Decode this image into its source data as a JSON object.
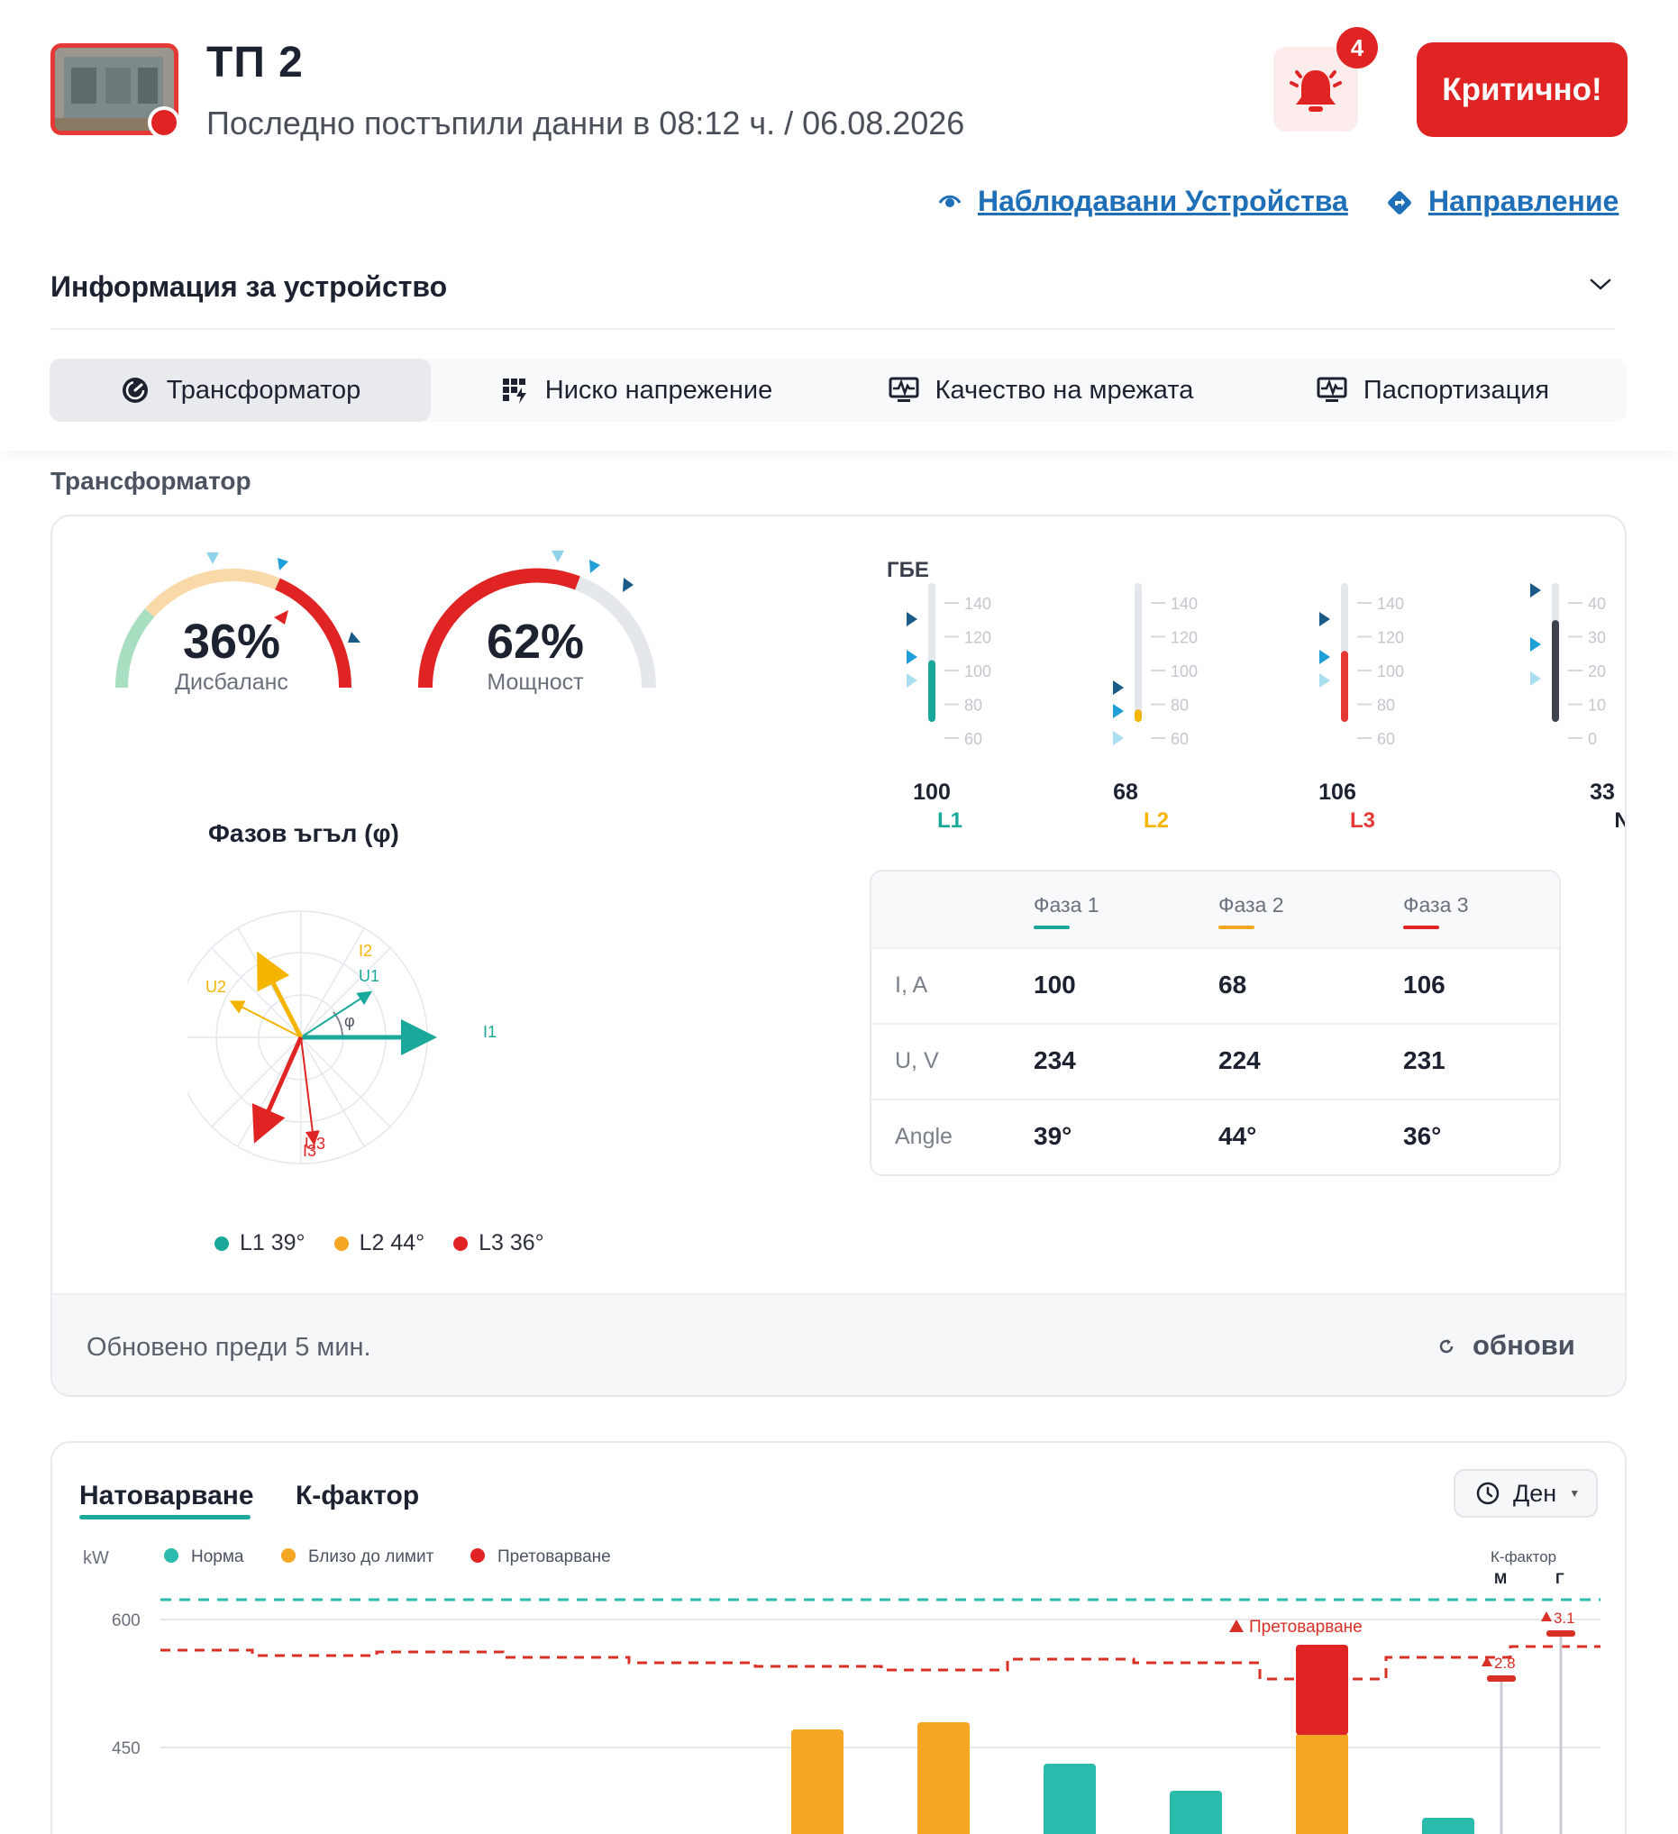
{
  "header": {
    "title": "ТП 2",
    "subtitle": "Последно постъпили данни в 08:12 ч. / 06.08.2026",
    "alerts_count": "4",
    "critical_label": "Критично!",
    "monitored_devices_link": "Наблюдавани Устройства",
    "direction_link": "Направление",
    "colors": {
      "critical": "#e02424",
      "link": "#1e6fb8"
    }
  },
  "device_info": {
    "title": "Информация за устройство"
  },
  "tabs": [
    {
      "label": "Трансформатор",
      "icon": "gauge-icon",
      "active": true
    },
    {
      "label": "Ниско напрежение",
      "icon": "grid-bolt-icon",
      "active": false
    },
    {
      "label": "Качество на мрежата",
      "icon": "monitor-wave-icon",
      "active": false
    },
    {
      "label": "Паспортизация",
      "icon": "monitor-wave-icon",
      "active": false
    }
  ],
  "transformer": {
    "section_title": "Трансформатор",
    "gauges": [
      {
        "value": "36%",
        "label": "Дисбаланс",
        "fraction": 0.36
      },
      {
        "value": "62%",
        "label": "Мощност",
        "fraction": 0.62
      }
    ],
    "gbe": {
      "label": "ГБЕ",
      "meters": [
        {
          "name": "L1",
          "value": "100",
          "level": 100,
          "color": "#1aa89a",
          "ticks": [
            "140",
            "120",
            "100",
            "80",
            "60"
          ]
        },
        {
          "name": "L2",
          "value": "68",
          "level": 68,
          "color": "#f5b400",
          "ticks": [
            "140",
            "120",
            "100",
            "80",
            "60"
          ]
        },
        {
          "name": "L3",
          "value": "106",
          "level": 106,
          "color": "#e53935",
          "ticks": [
            "140",
            "120",
            "100",
            "80",
            "60"
          ]
        },
        {
          "name": "N",
          "value": "33",
          "level": 33,
          "color": "#3d434d",
          "ticks": [
            "40",
            "30",
            "20",
            "10",
            "0"
          ]
        }
      ]
    },
    "phase_angle": {
      "title": "Фазов ъгъл (φ)",
      "phi": "φ",
      "vectors": {
        "I1": "I1",
        "I2": "I2",
        "I3": "I3",
        "U1": "U1",
        "U2": "U2",
        "U3": "U3"
      },
      "legend": [
        {
          "label": "L1 39°",
          "color": "#1aa89a"
        },
        {
          "label": "L2 44°",
          "color": "#f5a623"
        },
        {
          "label": "L3 36°",
          "color": "#e02424"
        }
      ]
    },
    "phase_table": {
      "headers": [
        "Фаза 1",
        "Фаза 2",
        "Фаза 3"
      ],
      "header_colors": [
        "#1aa89a",
        "#f5a623",
        "#e02424"
      ],
      "rows": [
        {
          "label": "I, A",
          "values": [
            "100",
            "68",
            "106"
          ]
        },
        {
          "label": "U, V",
          "values": [
            "234",
            "224",
            "231"
          ]
        },
        {
          "label": "Angle",
          "values": [
            "39°",
            "44°",
            "36°"
          ]
        }
      ]
    },
    "footer": {
      "updated": "Обновено преди 5 мин.",
      "refresh": "обнови"
    }
  },
  "load_chart": {
    "tabs": [
      "Натоварване",
      "К-фактор"
    ],
    "period": "Ден",
    "chart_data": {
      "type": "bar",
      "ylabel": "kW",
      "yticks": [
        "600",
        "450"
      ],
      "legend": [
        {
          "name": "Норма",
          "color": "#2bbbad"
        },
        {
          "name": "Близо до лимит",
          "color": "#f5a623"
        },
        {
          "name": "Претоварване",
          "color": "#e02424"
        }
      ],
      "annotation": "Претоварване",
      "kfactor_label": "К-фактор",
      "kfactor_columns": [
        "М",
        "Г"
      ],
      "kfactor_values": [
        "2.8",
        "3.1"
      ]
    }
  }
}
